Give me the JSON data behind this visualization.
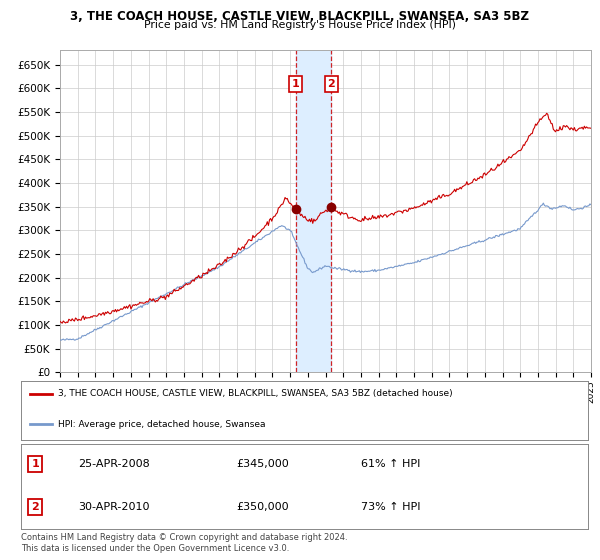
{
  "title": "3, THE COACH HOUSE, CASTLE VIEW, BLACKPILL, SWANSEA, SA3 5BZ",
  "subtitle": "Price paid vs. HM Land Registry's House Price Index (HPI)",
  "property_label": "3, THE COACH HOUSE, CASTLE VIEW, BLACKPILL, SWANSEA, SA3 5BZ (detached house)",
  "hpi_label": "HPI: Average price, detached house, Swansea",
  "footnote": "Contains HM Land Registry data © Crown copyright and database right 2024.\nThis data is licensed under the Open Government Licence v3.0.",
  "property_color": "#cc0000",
  "hpi_color": "#7799cc",
  "transaction1_date": 2008.32,
  "transaction1_price": 345000,
  "transaction1_label": "25-APR-2008",
  "transaction1_pct": "61% ↑ HPI",
  "transaction2_date": 2010.33,
  "transaction2_price": 350000,
  "transaction2_label": "30-APR-2010",
  "transaction2_pct": "73% ↑ HPI",
  "ylim": [
    0,
    680000
  ],
  "xlim_start": 1995,
  "xlim_end": 2025,
  "ytick_step": 50000,
  "background_color": "#ffffff",
  "grid_color": "#cccccc",
  "highlight_color": "#ddeeff"
}
